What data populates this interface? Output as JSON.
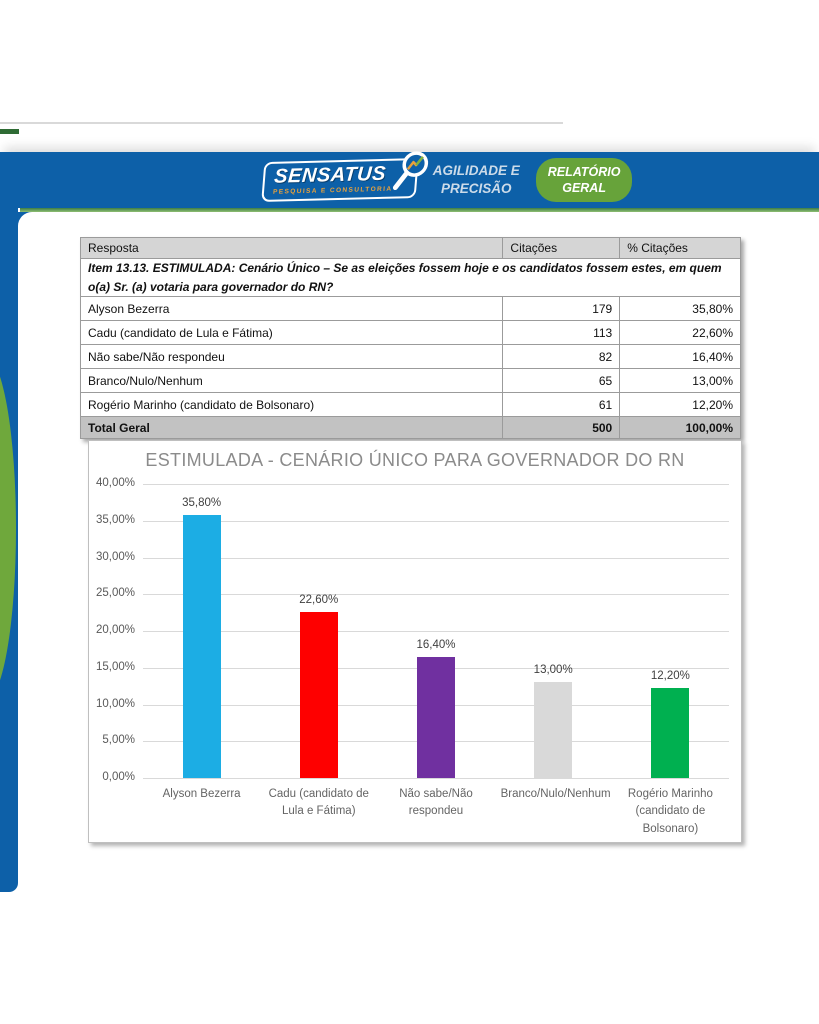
{
  "header": {
    "brand": "SENSATUS",
    "brand_subtitle": "PESQUISA E CONSULTORIA",
    "tagline_line1": "AGILIDADE E",
    "tagline_line2": "PRECISÃO",
    "badge_line1": "RELATÓRIO",
    "badge_line2": "GERAL"
  },
  "colors": {
    "band_blue": "#0d60a8",
    "accent_green": "#6fa83c",
    "badge_green": "#67a33a",
    "header_border_green": "#3c7d47",
    "brand_subtitle_orange": "#e9a13b"
  },
  "table": {
    "question": "Item 13.13. ESTIMULADA: Cenário Único – Se as eleições fossem hoje e os candidatos fossem estes, em quem o(a) Sr. (a) votaria para governador do RN?",
    "columns": [
      "Resposta",
      "Citações",
      "% Citações"
    ],
    "rows": [
      [
        "Alyson Bezerra",
        "179",
        "35,80%"
      ],
      [
        "Cadu (candidato de Lula e Fátima)",
        "113",
        "22,60%"
      ],
      [
        "Não sabe/Não respondeu",
        "82",
        "16,40%"
      ],
      [
        "Branco/Nulo/Nenhum",
        "65",
        "13,00%"
      ],
      [
        "Rogério Marinho (candidato de Bolsonaro)",
        "61",
        "12,20%"
      ]
    ],
    "total": [
      "Total Geral",
      "500",
      "100,00%"
    ]
  },
  "chart_data": {
    "type": "bar",
    "title": "ESTIMULADA - CENÁRIO ÚNICO PARA GOVERNADOR DO RN",
    "categories": [
      "Alyson Bezerra",
      "Cadu (candidato de Lula e Fátima)",
      "Não sabe/Não respondeu",
      "Branco/Nulo/Nenhum",
      "Rogério Marinho (candidato de Bolsonaro)"
    ],
    "values": [
      35.8,
      22.6,
      16.4,
      13.0,
      12.2
    ],
    "value_labels": [
      "35,80%",
      "22,60%",
      "16,40%",
      "13,00%",
      "12,20%"
    ],
    "colors": [
      "#1cade4",
      "#fe0000",
      "#7030a0",
      "#d9d9d9",
      "#00b050"
    ],
    "xlabel": "",
    "ylabel": "",
    "ylim": [
      0,
      40
    ],
    "ytick_labels": [
      "40,00%",
      "35,00%",
      "30,00%",
      "25,00%",
      "20,00%",
      "15,00%",
      "10,00%",
      "5,00%",
      "0,00%"
    ],
    "grid": true,
    "legend": "none"
  }
}
